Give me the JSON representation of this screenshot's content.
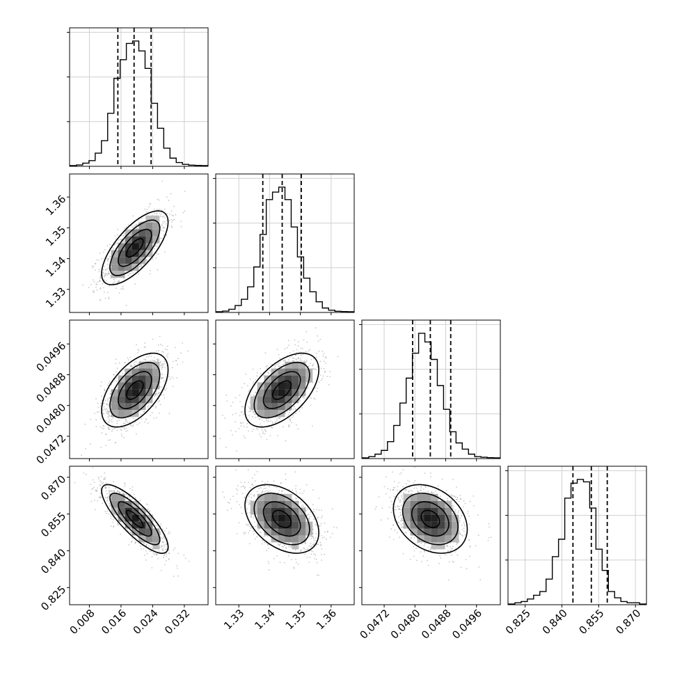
{
  "chart_data": {
    "type": "corner",
    "parameters": [
      {
        "range": [
          0.003,
          0.038
        ],
        "ticks": [
          "0.008",
          "0.016",
          "0.024",
          "0.032"
        ],
        "quantiles": [
          0.0152,
          0.0193,
          0.0236
        ],
        "histogram": [
          0.005,
          0.02,
          0.04,
          0.1,
          0.2,
          0.42,
          0.7,
          0.85,
          0.98,
          1.0,
          0.92,
          0.78,
          0.5,
          0.3,
          0.14,
          0.06,
          0.025,
          0.01,
          0.004,
          0.002
        ]
      },
      {
        "range": [
          1.3225,
          1.3675
        ],
        "ticks": [
          "1.33",
          "1.34",
          "1.35",
          "1.36"
        ],
        "quantiles": [
          1.3378,
          1.3441,
          1.3503
        ],
        "histogram": [
          0.005,
          0.02,
          0.05,
          0.1,
          0.2,
          0.36,
          0.62,
          0.9,
          0.96,
          1.0,
          0.9,
          0.68,
          0.44,
          0.27,
          0.16,
          0.08,
          0.03,
          0.012,
          0.004,
          0.002
        ]
      },
      {
        "range": [
          0.04662,
          0.05022
        ],
        "ticks": [
          "0.0472",
          "0.0480",
          "0.0488",
          "0.0496"
        ],
        "quantiles": [
          0.04794,
          0.0484,
          0.04893
        ],
        "histogram": [
          0.01,
          0.03,
          0.06,
          0.13,
          0.26,
          0.44,
          0.64,
          0.84,
          1.0,
          0.93,
          0.79,
          0.58,
          0.39,
          0.21,
          0.12,
          0.07,
          0.03,
          0.01,
          0.005,
          0.002
        ]
      },
      {
        "range": [
          0.818,
          0.8745
        ],
        "ticks": [
          "0.825",
          "0.840",
          "0.855",
          "0.870"
        ],
        "quantiles": [
          0.8445,
          0.852,
          0.8585
        ],
        "histogram": [
          0.01,
          0.02,
          0.04,
          0.07,
          0.1,
          0.2,
          0.38,
          0.52,
          0.85,
          0.97,
          1.0,
          0.98,
          0.77,
          0.44,
          0.27,
          0.1,
          0.05,
          0.02,
          0.01,
          0.01
        ]
      }
    ],
    "pairs": [
      {
        "row": 1,
        "col": 0,
        "cx": 0.0195,
        "cy": 1.3435,
        "sx": 0.0042,
        "sy": 0.006,
        "rho": 0.7
      },
      {
        "row": 2,
        "col": 0,
        "cx": 0.0195,
        "cy": 0.0484,
        "sx": 0.0042,
        "sy": 0.00048,
        "rho": 0.55
      },
      {
        "row": 2,
        "col": 1,
        "cx": 1.344,
        "cy": 0.0484,
        "sx": 0.006,
        "sy": 0.00048,
        "rho": 0.55
      },
      {
        "row": 3,
        "col": 0,
        "cx": 0.0195,
        "cy": 0.853,
        "sx": 0.0042,
        "sy": 0.007,
        "rho": -0.82
      },
      {
        "row": 3,
        "col": 1,
        "cx": 1.344,
        "cy": 0.853,
        "sx": 0.006,
        "sy": 0.007,
        "rho": -0.4
      },
      {
        "row": 3,
        "col": 2,
        "cx": 0.0484,
        "cy": 0.853,
        "sx": 0.00048,
        "sy": 0.007,
        "rho": -0.3
      }
    ],
    "grid": true
  }
}
